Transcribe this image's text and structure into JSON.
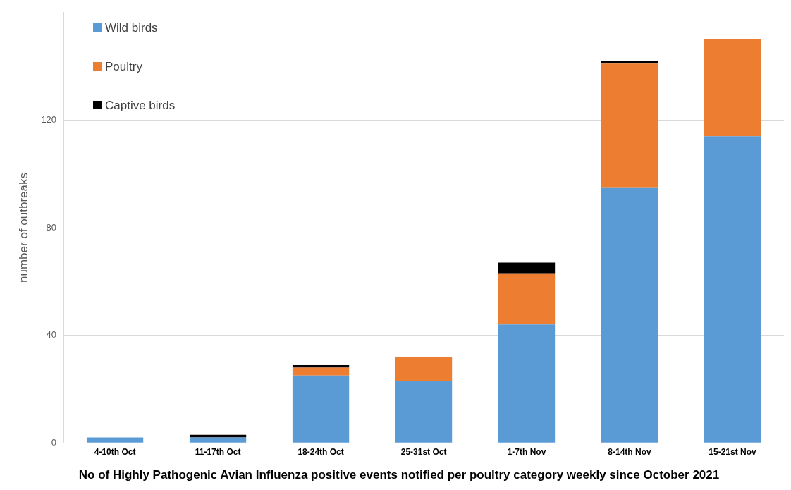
{
  "chart_data": {
    "type": "bar",
    "title": "No of Highly Pathogenic Avian Influenza positive events notified per poultry category weekly since October 2021",
    "ylabel": "number of outbreaks",
    "categories": [
      "4-10th Oct",
      "11-17th Oct",
      "18-24th Oct",
      "25-31st Oct",
      "1-7th Nov",
      "8-14th Nov",
      "15-21st Nov"
    ],
    "series": [
      {
        "name": "Wild birds",
        "color": "#5b9bd5",
        "values": [
          2,
          2,
          25,
          23,
          44,
          95,
          114
        ]
      },
      {
        "name": "Poultry",
        "color": "#ed7d31",
        "values": [
          0,
          0,
          3,
          9,
          19,
          46,
          36
        ]
      },
      {
        "name": "Captive birds",
        "color": "#000000",
        "values": [
          0,
          1,
          1,
          0,
          4,
          1,
          0
        ]
      }
    ],
    "stacked": true,
    "ylim": [
      0,
      160
    ],
    "yticks": [
      0,
      40,
      80,
      120
    ],
    "grid": "y",
    "legend": "top left"
  }
}
